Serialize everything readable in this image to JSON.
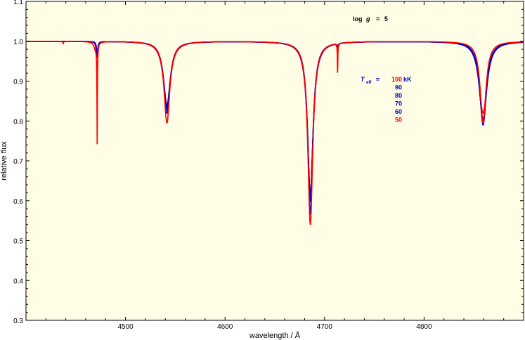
{
  "chart_data": {
    "type": "line",
    "xlabel": "wavelength / Å",
    "ylabel": "relative flux",
    "xlim": [
      4400,
      4900
    ],
    "ylim": [
      0.3,
      1.1
    ],
    "x_ticks": [
      4500,
      4600,
      4700,
      4800
    ],
    "y_ticks": [
      0.3,
      0.4,
      0.5,
      0.6,
      0.7,
      0.8,
      0.9,
      1.0,
      1.1
    ],
    "y_tick_labels": [
      "0.3",
      "0.4",
      "0.5",
      "0.6",
      "0.7",
      "0.8",
      "0.9",
      "1.0",
      "1.1"
    ],
    "background": "#fffde6",
    "grid": false,
    "annotations": {
      "logg": {
        "prefix": "log",
        "symbol": "g",
        "equals": "=",
        "value": "5"
      },
      "teff": {
        "symbol": "T",
        "subscript": "eff",
        "equals": "=",
        "unit": "kK"
      }
    },
    "series": [
      {
        "name": "100",
        "color": "#ff0000",
        "lines": [
          {
            "x0": 4437.5,
            "depth": 0.005,
            "width": 0.4
          },
          {
            "x0": 4471.5,
            "depth": 0.245,
            "width": 0.25
          },
          {
            "x0": 4470.0,
            "depth": 0.02,
            "width": 2.0
          },
          {
            "x0": 4541.6,
            "depth": 0.205,
            "width": 3.5
          },
          {
            "x0": 4685.7,
            "depth": 0.46,
            "width": 3.0
          },
          {
            "x0": 4713.1,
            "depth": 0.085,
            "width": 0.25
          },
          {
            "x0": 4859.3,
            "depth": 0.205,
            "width": 3.5
          }
        ]
      },
      {
        "name": "90",
        "color": "#0000cc",
        "lines": [
          {
            "x0": 4471.5,
            "depth": 0.04,
            "width": 0.8
          },
          {
            "x0": 4541.6,
            "depth": 0.18,
            "width": 3.8
          },
          {
            "x0": 4685.7,
            "depth": 0.43,
            "width": 3.1
          },
          {
            "x0": 4713.1,
            "depth": 0.015,
            "width": 0.8
          },
          {
            "x0": 4859.3,
            "depth": 0.21,
            "width": 4.0
          }
        ]
      },
      {
        "name": "80",
        "color": "#0000cc",
        "lines": [
          {
            "x0": 4471.5,
            "depth": 0.035,
            "width": 0.8
          },
          {
            "x0": 4541.6,
            "depth": 0.17,
            "width": 3.9
          },
          {
            "x0": 4685.7,
            "depth": 0.4,
            "width": 3.2
          },
          {
            "x0": 4713.1,
            "depth": 0.01,
            "width": 0.8
          },
          {
            "x0": 4859.3,
            "depth": 0.205,
            "width": 4.2
          }
        ]
      },
      {
        "name": "70",
        "color": "#0000cc",
        "lines": [
          {
            "x0": 4471.5,
            "depth": 0.03,
            "width": 0.8
          },
          {
            "x0": 4541.6,
            "depth": 0.165,
            "width": 4.0
          },
          {
            "x0": 4685.7,
            "depth": 0.39,
            "width": 3.3
          },
          {
            "x0": 4713.1,
            "depth": 0.008,
            "width": 0.8
          },
          {
            "x0": 4859.3,
            "depth": 0.2,
            "width": 4.4
          }
        ]
      },
      {
        "name": "60",
        "color": "#0000cc",
        "lines": [
          {
            "x0": 4471.5,
            "depth": 0.03,
            "width": 0.8
          },
          {
            "x0": 4541.6,
            "depth": 0.16,
            "width": 4.1
          },
          {
            "x0": 4685.7,
            "depth": 0.385,
            "width": 3.4
          },
          {
            "x0": 4713.1,
            "depth": 0.006,
            "width": 0.8
          },
          {
            "x0": 4859.3,
            "depth": 0.195,
            "width": 4.6
          }
        ]
      },
      {
        "name": "50",
        "color": "#ff0000",
        "lines": [
          {
            "x0": 4471.5,
            "depth": 0.1,
            "width": 0.6
          },
          {
            "x0": 4541.6,
            "depth": 0.17,
            "width": 4.2
          },
          {
            "x0": 4685.7,
            "depth": 0.38,
            "width": 3.5
          },
          {
            "x0": 4713.1,
            "depth": 0.005,
            "width": 0.8
          },
          {
            "x0": 4859.3,
            "depth": 0.18,
            "width": 4.8
          }
        ]
      }
    ]
  }
}
